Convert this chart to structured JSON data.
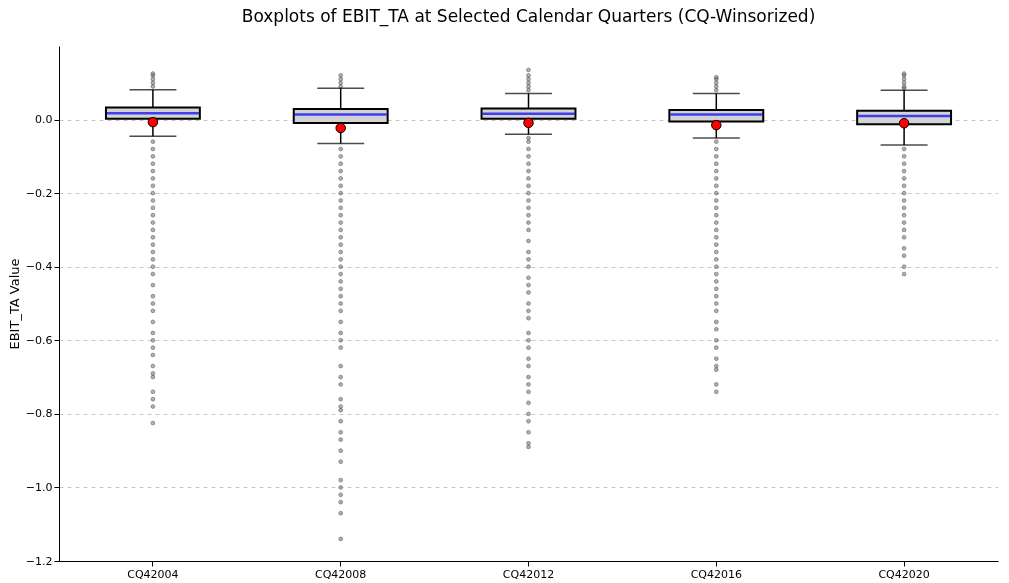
{
  "chart_data": {
    "type": "box",
    "title": "Boxplots of EBIT_TA at Selected Calendar Quarters (CQ-Winsorized)",
    "ylabel": "EBIT_TA Value",
    "categories": [
      "CQ42004",
      "CQ42008",
      "CQ42012",
      "CQ42016",
      "CQ42020"
    ],
    "boxes": [
      {
        "low": -0.045,
        "q1": 0.002,
        "median": 0.017,
        "q3": 0.033,
        "high": 0.081,
        "mean": -0.007,
        "outliers": [
          0.09,
          0.1,
          0.11,
          0.12,
          0.125,
          -0.06,
          -0.08,
          -0.1,
          -0.12,
          -0.14,
          -0.16,
          -0.18,
          -0.2,
          -0.22,
          -0.24,
          -0.26,
          -0.28,
          -0.3,
          -0.32,
          -0.34,
          -0.36,
          -0.38,
          -0.4,
          -0.42,
          -0.45,
          -0.48,
          -0.5,
          -0.52,
          -0.55,
          -0.58,
          -0.6,
          -0.62,
          -0.64,
          -0.67,
          -0.69,
          -0.7,
          -0.74,
          -0.76,
          -0.78,
          -0.825
        ]
      },
      {
        "low": -0.065,
        "q1": -0.009,
        "median": 0.014,
        "q3": 0.029,
        "high": 0.085,
        "mean": -0.023,
        "outliers": [
          0.09,
          0.1,
          0.11,
          0.12,
          -0.08,
          -0.1,
          -0.12,
          -0.14,
          -0.16,
          -0.18,
          -0.2,
          -0.22,
          -0.24,
          -0.26,
          -0.28,
          -0.3,
          -0.32,
          -0.34,
          -0.36,
          -0.38,
          -0.4,
          -0.42,
          -0.44,
          -0.46,
          -0.48,
          -0.5,
          -0.52,
          -0.55,
          -0.58,
          -0.6,
          -0.62,
          -0.67,
          -0.7,
          -0.72,
          -0.76,
          -0.78,
          -0.79,
          -0.82,
          -0.85,
          -0.87,
          -0.9,
          -0.93,
          -0.98,
          -1.0,
          -1.02,
          -1.04,
          -1.07,
          -1.14
        ]
      },
      {
        "low": -0.04,
        "q1": 0.002,
        "median": 0.016,
        "q3": 0.03,
        "high": 0.071,
        "mean": -0.009,
        "outliers": [
          0.08,
          0.09,
          0.1,
          0.11,
          0.12,
          0.135,
          -0.05,
          -0.06,
          -0.08,
          -0.1,
          -0.12,
          -0.14,
          -0.16,
          -0.18,
          -0.2,
          -0.22,
          -0.24,
          -0.26,
          -0.28,
          -0.3,
          -0.33,
          -0.36,
          -0.38,
          -0.4,
          -0.43,
          -0.45,
          -0.47,
          -0.5,
          -0.52,
          -0.54,
          -0.58,
          -0.6,
          -0.62,
          -0.65,
          -0.67,
          -0.7,
          -0.72,
          -0.74,
          -0.77,
          -0.8,
          -0.82,
          -0.85,
          -0.88,
          -0.89
        ]
      },
      {
        "low": -0.05,
        "q1": -0.005,
        "median": 0.014,
        "q3": 0.026,
        "high": 0.071,
        "mean": -0.015,
        "outliers": [
          0.08,
          0.09,
          0.1,
          0.11,
          0.115,
          -0.06,
          -0.08,
          -0.1,
          -0.12,
          -0.14,
          -0.16,
          -0.18,
          -0.2,
          -0.22,
          -0.24,
          -0.26,
          -0.28,
          -0.3,
          -0.32,
          -0.34,
          -0.36,
          -0.38,
          -0.4,
          -0.42,
          -0.44,
          -0.46,
          -0.48,
          -0.5,
          -0.52,
          -0.55,
          -0.57,
          -0.6,
          -0.62,
          -0.65,
          -0.67,
          -0.68,
          -0.72,
          -0.74
        ]
      },
      {
        "low": -0.069,
        "q1": -0.013,
        "median": 0.01,
        "q3": 0.024,
        "high": 0.08,
        "mean": -0.01,
        "outliers": [
          0.085,
          0.09,
          0.1,
          0.11,
          0.12,
          0.125,
          -0.08,
          -0.1,
          -0.12,
          -0.14,
          -0.16,
          -0.18,
          -0.2,
          -0.22,
          -0.24,
          -0.26,
          -0.28,
          -0.3,
          -0.32,
          -0.35,
          -0.37,
          -0.4,
          -0.42
        ]
      }
    ],
    "ylim": [
      -1.2,
      0.2
    ],
    "yticks": [
      -1.2,
      {
        "value": -1.0,
        "label": "−1.0"
      },
      -0.8,
      -0.6,
      -0.4,
      -0.2,
      {
        "value": 0,
        "label": "0.0"
      }
    ],
    "grid": "y"
  }
}
